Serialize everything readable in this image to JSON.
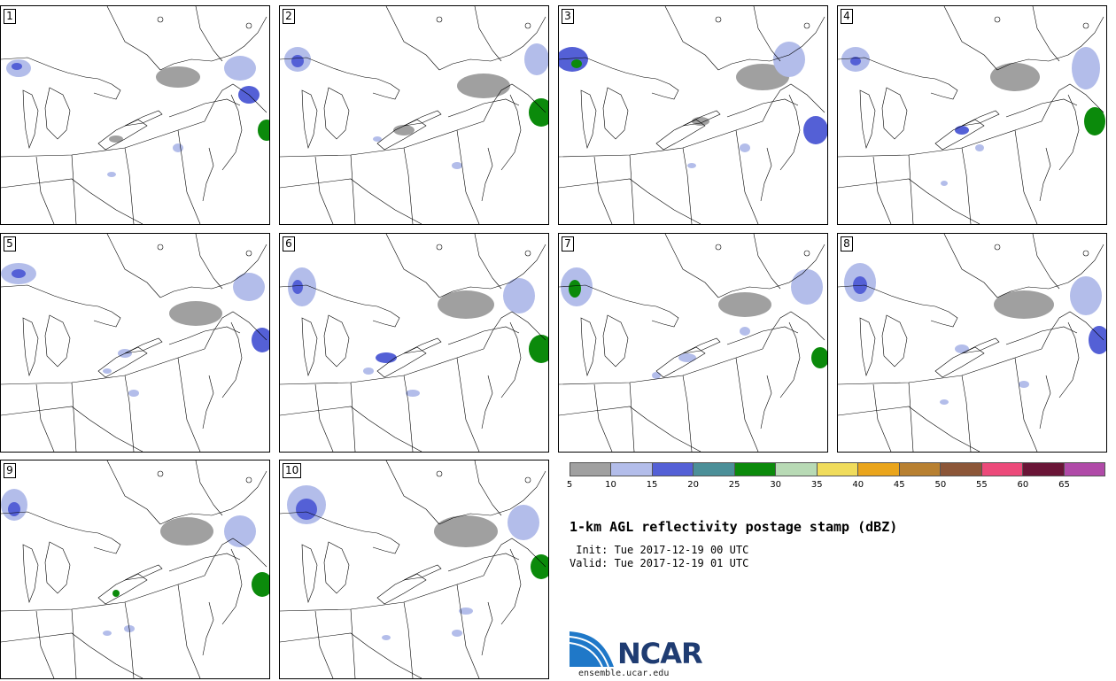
{
  "panels": [
    {
      "label": "1"
    },
    {
      "label": "2"
    },
    {
      "label": "3"
    },
    {
      "label": "4"
    },
    {
      "label": "5"
    },
    {
      "label": "6"
    },
    {
      "label": "7"
    },
    {
      "label": "8"
    },
    {
      "label": "9"
    },
    {
      "label": "10"
    }
  ],
  "colorbar": {
    "colors": [
      "#a0a0a0",
      "#b3bdea",
      "#5460d6",
      "#4b8f98",
      "#0b8a0b",
      "#b8dab5",
      "#f0dc5c",
      "#eaa51c",
      "#b88031",
      "#8c5638",
      "#ec4a7a",
      "#6a1537",
      "#b04aa8"
    ],
    "ticks": [
      "5",
      "10",
      "15",
      "20",
      "25",
      "30",
      "35",
      "40",
      "45",
      "50",
      "55",
      "60",
      "65"
    ]
  },
  "title": "1-km AGL reflectivity postage stamp (dBZ)",
  "init": " Init: Tue 2017-12-19 00 UTC",
  "valid": "Valid: Tue 2017-12-19 01 UTC",
  "logo": {
    "text": "NCAR",
    "url": "ensemble.ucar.edu"
  }
}
